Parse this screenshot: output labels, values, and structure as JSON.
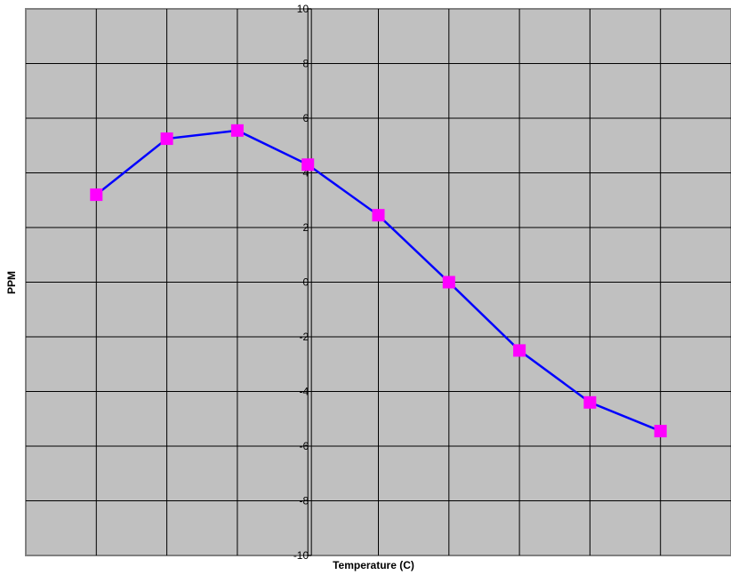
{
  "chart_data": {
    "type": "line",
    "title": "",
    "xlabel": "Temperature (C)",
    "ylabel": "PPM",
    "x_categories": [
      "",
      "",
      "",
      "",
      "",
      "",
      "",
      "",
      ""
    ],
    "series": [
      {
        "values": [
          3.2,
          5.25,
          5.55,
          4.3,
          2.45,
          0.0,
          -2.5,
          -4.4,
          -5.45
        ]
      }
    ],
    "ylim": [
      -10,
      10
    ],
    "y_tick_step": 2,
    "grid": true,
    "legend": "none",
    "colors": {
      "plot_background": "#c0c0c0",
      "plot_border": "#808080",
      "gridline": "#000000",
      "line": "#0000ff",
      "marker": "#ff00ff"
    }
  }
}
